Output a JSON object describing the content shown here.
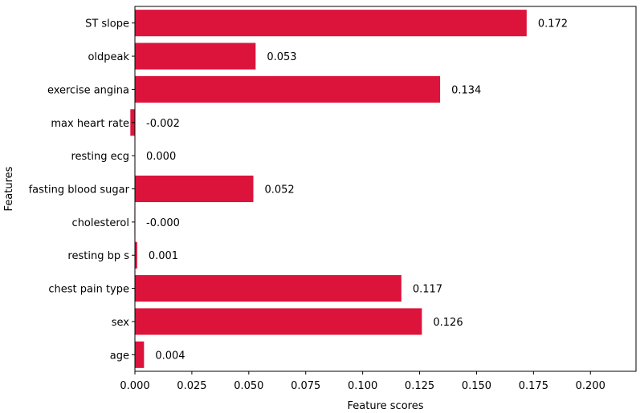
{
  "chart_data": {
    "type": "bar",
    "orientation": "horizontal",
    "title": "",
    "xlabel": "Feature scores",
    "ylabel": "Features",
    "xlim": [
      0.0,
      0.22
    ],
    "xticks": [
      0.0,
      0.025,
      0.05,
      0.075,
      0.1,
      0.125,
      0.15,
      0.175,
      0.2
    ],
    "xtick_labels": [
      "0.000",
      "0.025",
      "0.050",
      "0.075",
      "0.100",
      "0.125",
      "0.150",
      "0.175",
      "0.200"
    ],
    "categories": [
      "age",
      "sex",
      "chest pain type",
      "resting bp s",
      "cholesterol",
      "fasting blood sugar",
      "resting ecg",
      "max heart rate",
      "exercise angina",
      "oldpeak",
      "ST slope"
    ],
    "values": [
      0.004,
      0.126,
      0.117,
      0.001,
      -0.0002,
      0.052,
      0.0,
      -0.002,
      0.134,
      0.053,
      0.172
    ],
    "value_labels": [
      "0.004",
      "0.126",
      "0.117",
      "0.001",
      "-0.000",
      "0.052",
      "0.000",
      "-0.002",
      "0.134",
      "0.053",
      "0.172"
    ],
    "bar_color": "#dc143c",
    "grid": false,
    "legend": "none"
  }
}
